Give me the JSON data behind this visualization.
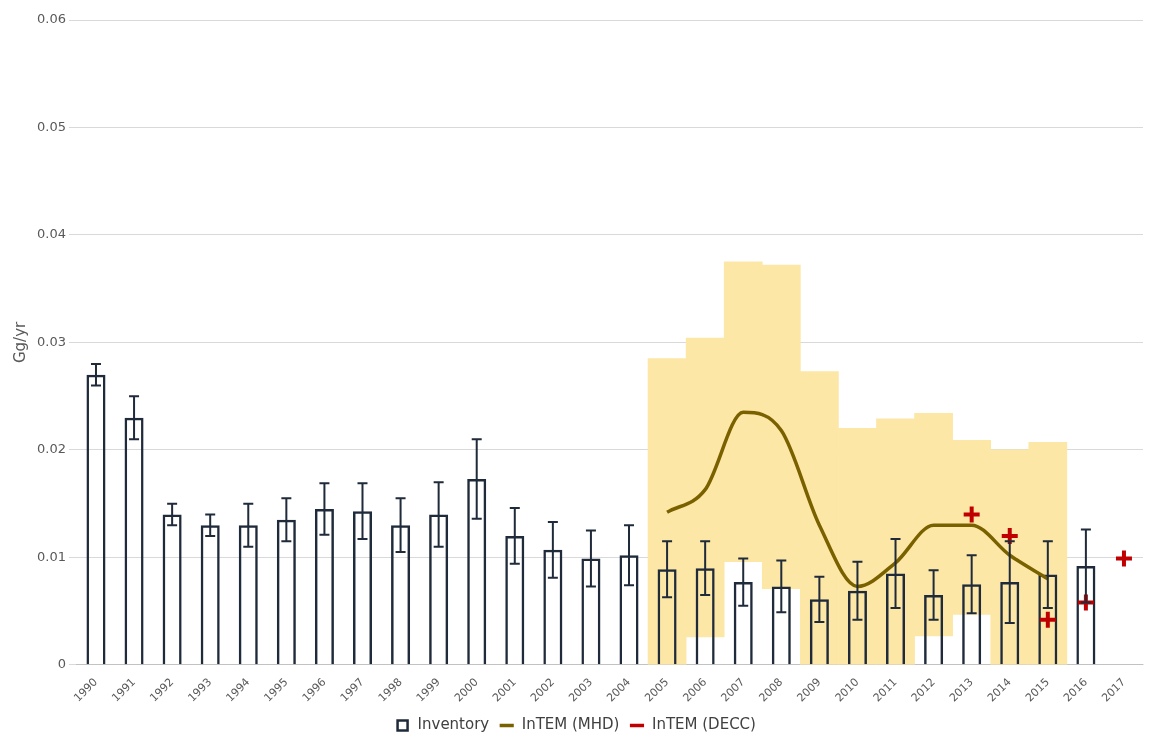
{
  "chart_data": {
    "type": "bar",
    "ylabel": "Gg/yr",
    "categories": [
      "1990",
      "1991",
      "1992",
      "1993",
      "1994",
      "1995",
      "1996",
      "1997",
      "1998",
      "1999",
      "2000",
      "2001",
      "2002",
      "2003",
      "2004",
      "2005",
      "2006",
      "2007",
      "2008",
      "2009",
      "2010",
      "2011",
      "2012",
      "2013",
      "2014",
      "2015",
      "2016",
      "2017"
    ],
    "series": [
      {
        "type": "bar",
        "color": "#fde7a6",
        "base": [
          null,
          null,
          null,
          null,
          null,
          null,
          null,
          null,
          null,
          null,
          null,
          null,
          null,
          null,
          null,
          0,
          0.0026,
          0.0096,
          0.0071,
          0,
          0,
          0,
          0.0027,
          0.0047,
          0,
          0,
          null,
          null
        ],
        "values": [
          null,
          null,
          null,
          null,
          null,
          null,
          null,
          null,
          null,
          null,
          null,
          null,
          null,
          null,
          null,
          0.0285,
          0.0278,
          0.0279,
          0.0301,
          0.0273,
          0.022,
          0.0229,
          0.0207,
          0.0162,
          0.02,
          0.0207,
          null,
          null
        ]
      },
      {
        "name": "Inventory",
        "color": "#1f2a3a",
        "values": [
          0.027,
          0.023,
          0.014,
          0.013,
          0.013,
          0.0135,
          0.0145,
          0.0143,
          0.013,
          0.014,
          0.0173,
          0.012,
          0.0107,
          0.0099,
          0.0102,
          0.0089,
          0.009,
          0.0077,
          0.0073,
          0.0061,
          0.0069,
          0.0085,
          0.0065,
          0.0075,
          0.0077,
          0.0084,
          0.0092,
          null
        ],
        "errors": [
          0.001,
          0.002,
          0.001,
          0.001,
          0.002,
          0.002,
          0.0024,
          0.0026,
          0.0025,
          0.003,
          0.0037,
          0.0026,
          0.0026,
          0.0026,
          0.0028,
          0.0026,
          0.0025,
          0.0022,
          0.0024,
          0.0021,
          0.0027,
          0.0032,
          0.0023,
          0.0027,
          0.0038,
          0.0031,
          0.0034,
          null
        ]
      },
      {
        "type": "line",
        "name": "InTEM (MHD)",
        "color": "#7a6100",
        "marker": "none",
        "values": [
          null,
          null,
          null,
          null,
          null,
          null,
          null,
          null,
          null,
          null,
          null,
          null,
          null,
          null,
          null,
          0.0142,
          0.0163,
          0.0235,
          0.0218,
          0.013,
          0.0073,
          0.0095,
          0.013,
          0.013,
          0.0102,
          0.008,
          null,
          null
        ]
      },
      {
        "type": "scatter",
        "name": "InTEM (DECC)",
        "color": "#c00000",
        "marker": "cross",
        "values": [
          null,
          null,
          null,
          null,
          null,
          null,
          null,
          null,
          null,
          null,
          null,
          null,
          null,
          null,
          null,
          null,
          null,
          null,
          null,
          null,
          null,
          null,
          null,
          0.014,
          0.012,
          0.0042,
          0.0058,
          0.0099
        ]
      }
    ],
    "ylim": [
      0,
      0.06
    ],
    "yticks": [
      0,
      0.01,
      0.02,
      0.03,
      0.04,
      0.05,
      0.06
    ],
    "grid": "y",
    "legend": "bottom"
  }
}
